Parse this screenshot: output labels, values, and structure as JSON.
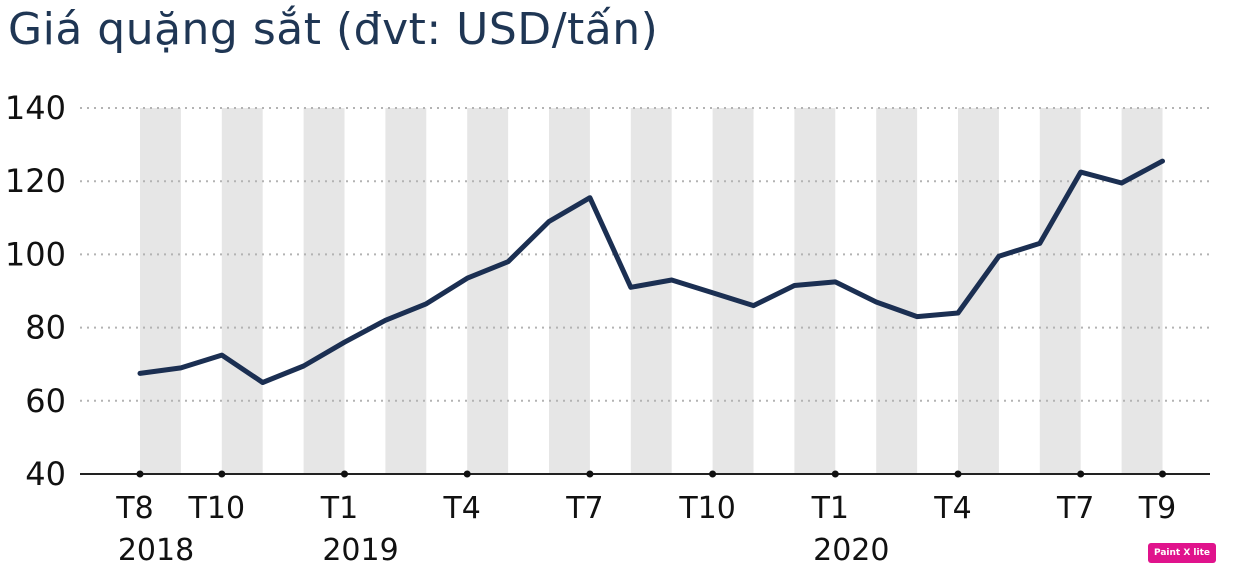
{
  "chart_data": {
    "type": "line",
    "title": "Giá quặng sắt (đvt: USD/tấn)",
    "xlabel": "",
    "ylabel": "",
    "ylim": [
      40,
      140
    ],
    "yticks": [
      40,
      60,
      80,
      100,
      120,
      140
    ],
    "grid": true,
    "line_color": "#1b2f52",
    "x": [
      "2018-08",
      "2018-09",
      "2018-10",
      "2018-11",
      "2018-12",
      "2019-01",
      "2019-02",
      "2019-03",
      "2019-04",
      "2019-05",
      "2019-06",
      "2019-07",
      "2019-08",
      "2019-09",
      "2019-10",
      "2019-11",
      "2019-12",
      "2020-01",
      "2020-02",
      "2020-03",
      "2020-04",
      "2020-05",
      "2020-06",
      "2020-07",
      "2020-08",
      "2020-09"
    ],
    "series": [
      {
        "values": [
          67.5,
          69,
          72.5,
          65,
          69.5,
          76,
          82,
          86.5,
          93.5,
          98,
          109,
          115.5,
          91,
          93,
          89.5,
          86,
          91.5,
          92.5,
          87,
          83,
          84,
          99.5,
          103,
          122.5,
          119.5,
          125.5
        ]
      }
    ],
    "x_tick_labels": [
      {
        "index": 0,
        "month": "T8",
        "year": "2018"
      },
      {
        "index": 2,
        "month": "T10",
        "year": ""
      },
      {
        "index": 5,
        "month": "T1",
        "year": "2019"
      },
      {
        "index": 8,
        "month": "T4",
        "year": ""
      },
      {
        "index": 11,
        "month": "T7",
        "year": ""
      },
      {
        "index": 14,
        "month": "T10",
        "year": ""
      },
      {
        "index": 17,
        "month": "T1",
        "year": "2020"
      },
      {
        "index": 20,
        "month": "T4",
        "year": ""
      },
      {
        "index": 23,
        "month": "T7",
        "year": ""
      },
      {
        "index": 25,
        "month": "T9",
        "year": ""
      }
    ]
  },
  "watermark": "Paint X lite"
}
